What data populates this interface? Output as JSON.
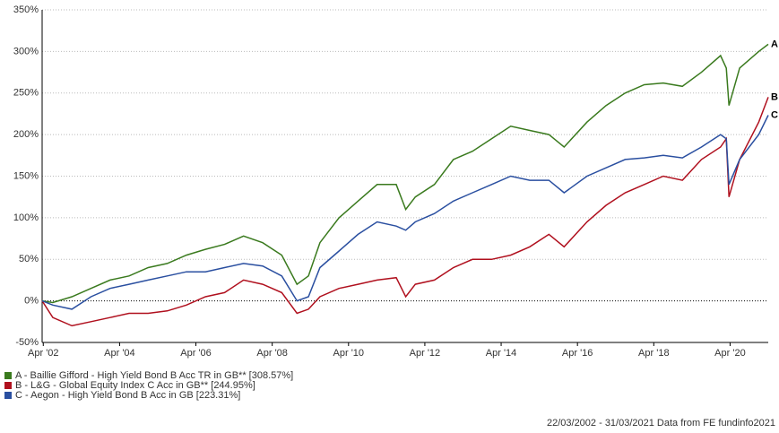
{
  "chart_data": {
    "type": "line",
    "x": [
      2002.22,
      2002.5,
      2003.0,
      2003.5,
      2004.0,
      2004.5,
      2005.0,
      2005.5,
      2006.0,
      2006.5,
      2007.0,
      2007.5,
      2008.0,
      2008.5,
      2008.9,
      2009.2,
      2009.5,
      2010.0,
      2010.5,
      2011.0,
      2011.5,
      2011.75,
      2012.0,
      2012.5,
      2013.0,
      2013.5,
      2014.0,
      2014.5,
      2015.0,
      2015.5,
      2015.9,
      2016.5,
      2017.0,
      2017.5,
      2018.0,
      2018.5,
      2019.0,
      2019.5,
      2020.0,
      2020.15,
      2020.22,
      2020.5,
      2021.0,
      2021.25
    ],
    "series": [
      {
        "name": "A - Baillie Gifford - High Yield Bond B Acc TR in GB** [308.57%]",
        "end_label": "A",
        "color": "#3a7a1e",
        "values": [
          0,
          -2,
          5,
          15,
          25,
          30,
          40,
          45,
          55,
          62,
          68,
          78,
          70,
          55,
          20,
          30,
          70,
          100,
          120,
          140,
          140,
          110,
          125,
          140,
          170,
          180,
          195,
          210,
          205,
          200,
          185,
          215,
          235,
          250,
          260,
          262,
          258,
          275,
          295,
          280,
          235,
          280,
          300,
          308.57
        ]
      },
      {
        "name": "B - L&G - Global Equity Index C Acc in GB** [244.95%]",
        "end_label": "B",
        "color": "#b0101e",
        "values": [
          0,
          -20,
          -30,
          -25,
          -20,
          -15,
          -15,
          -12,
          -5,
          5,
          10,
          25,
          20,
          10,
          -15,
          -10,
          5,
          15,
          20,
          25,
          28,
          5,
          20,
          25,
          40,
          50,
          50,
          55,
          65,
          80,
          65,
          95,
          115,
          130,
          140,
          150,
          145,
          170,
          185,
          195,
          125,
          170,
          215,
          244.95
        ]
      },
      {
        "name": "C - Aegon - High Yield Bond B Acc in GB [223.31%]",
        "end_label": "C",
        "color": "#2a4fa0",
        "values": [
          0,
          -5,
          -10,
          5,
          15,
          20,
          25,
          30,
          35,
          35,
          40,
          45,
          42,
          30,
          0,
          5,
          40,
          60,
          80,
          95,
          90,
          85,
          95,
          105,
          120,
          130,
          140,
          150,
          145,
          145,
          130,
          150,
          160,
          170,
          172,
          175,
          172,
          185,
          200,
          195,
          140,
          170,
          200,
          223.31
        ]
      }
    ],
    "xlim": [
      2002.22,
      2021.25
    ],
    "xticks": [
      {
        "value": 2002.25,
        "label": "Apr '02"
      },
      {
        "value": 2004.25,
        "label": "Apr '04"
      },
      {
        "value": 2006.25,
        "label": "Apr '06"
      },
      {
        "value": 2008.25,
        "label": "Apr '08"
      },
      {
        "value": 2010.25,
        "label": "Apr '10"
      },
      {
        "value": 2012.25,
        "label": "Apr '12"
      },
      {
        "value": 2014.25,
        "label": "Apr '14"
      },
      {
        "value": 2016.25,
        "label": "Apr '16"
      },
      {
        "value": 2018.25,
        "label": "Apr '18"
      },
      {
        "value": 2020.25,
        "label": "Apr '20"
      }
    ],
    "ylim": [
      -50,
      350
    ],
    "yticks": [
      {
        "value": -50,
        "label": "-50%"
      },
      {
        "value": 0,
        "label": "0%"
      },
      {
        "value": 50,
        "label": "50%"
      },
      {
        "value": 100,
        "label": "100%"
      },
      {
        "value": 150,
        "label": "150%"
      },
      {
        "value": 200,
        "label": "200%"
      },
      {
        "value": 250,
        "label": "250%"
      },
      {
        "value": 300,
        "label": "300%"
      },
      {
        "value": 350,
        "label": "350%"
      }
    ],
    "grid": true,
    "footer": "22/03/2002 - 31/03/2021 Data from FE fundinfo2021"
  }
}
